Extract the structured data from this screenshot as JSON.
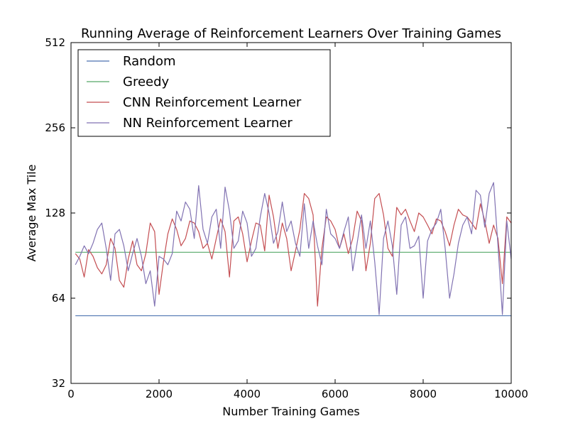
{
  "chart_data": {
    "type": "line",
    "title": "Running Average of Reinforcement Learners Over Training Games",
    "xlabel": "Number Training Games",
    "ylabel": "Average Max Tile",
    "xlim": [
      0,
      10000
    ],
    "ylim": [
      32,
      512
    ],
    "yscale": "log2",
    "xticks": [
      "0",
      "2000",
      "4000",
      "6000",
      "8000",
      "10000"
    ],
    "yticks": [
      "32",
      "64",
      "128",
      "256",
      "512"
    ],
    "legend_position": "top-left",
    "grid": false,
    "series": [
      {
        "name": "Random",
        "color": "#4c72b0",
        "x": [
          100,
          10000
        ],
        "y": [
          55.5,
          55.5
        ]
      },
      {
        "name": "Greedy",
        "color": "#55a868",
        "x": [
          100,
          10000
        ],
        "y": [
          93,
          93
        ]
      },
      {
        "name": "CNN Reinforcement Learner",
        "color": "#c44e52",
        "x": [
          100,
          200,
          300,
          400,
          500,
          600,
          700,
          800,
          900,
          1000,
          1100,
          1200,
          1300,
          1400,
          1500,
          1600,
          1700,
          1800,
          1900,
          2000,
          2100,
          2200,
          2300,
          2400,
          2500,
          2600,
          2700,
          2800,
          2900,
          3000,
          3100,
          3200,
          3300,
          3400,
          3500,
          3600,
          3700,
          3800,
          3900,
          4000,
          4100,
          4200,
          4300,
          4400,
          4500,
          4600,
          4700,
          4800,
          4900,
          5000,
          5100,
          5200,
          5300,
          5400,
          5500,
          5600,
          5700,
          5800,
          5900,
          6000,
          6100,
          6200,
          6300,
          6400,
          6500,
          6600,
          6700,
          6800,
          6900,
          7000,
          7100,
          7200,
          7300,
          7400,
          7500,
          7600,
          7700,
          7800,
          7900,
          8000,
          8100,
          8200,
          8300,
          8400,
          8500,
          8600,
          8700,
          8800,
          8900,
          9000,
          9100,
          9200,
          9300,
          9400,
          9500,
          9600,
          9700,
          9800,
          9900,
          10000
        ],
        "y": [
          92,
          88,
          76,
          95,
          90,
          82,
          78,
          84,
          104,
          96,
          74,
          70,
          88,
          102,
          84,
          80,
          92,
          118,
          110,
          66,
          86,
          108,
          122,
          112,
          98,
          104,
          120,
          118,
          110,
          96,
          100,
          88,
          104,
          122,
          110,
          76,
          120,
          124,
          108,
          86,
          102,
          118,
          116,
          94,
          148,
          124,
          96,
          118,
          104,
          80,
          94,
          112,
          150,
          144,
          126,
          60,
          96,
          124,
          120,
          112,
          96,
          108,
          92,
          104,
          130,
          120,
          80,
          100,
          144,
          150,
          126,
          96,
          90,
          134,
          126,
          132,
          120,
          110,
          128,
          124,
          116,
          108,
          122,
          120,
          110,
          98,
          116,
          132,
          126,
          124,
          118,
          112,
          138,
          120,
          100,
          116,
          104,
          72,
          124,
          118
        ]
      },
      {
        "name": "NN Reinforcement Learner",
        "color": "#8172b2",
        "x": [
          100,
          200,
          300,
          400,
          500,
          600,
          700,
          800,
          900,
          1000,
          1100,
          1200,
          1300,
          1400,
          1500,
          1600,
          1700,
          1800,
          1900,
          2000,
          2100,
          2200,
          2300,
          2400,
          2500,
          2600,
          2700,
          2800,
          2900,
          3000,
          3100,
          3200,
          3300,
          3400,
          3500,
          3600,
          3700,
          3800,
          3900,
          4000,
          4100,
          4200,
          4300,
          4400,
          4500,
          4600,
          4700,
          4800,
          4900,
          5000,
          5100,
          5200,
          5300,
          5400,
          5500,
          5600,
          5700,
          5800,
          5900,
          6000,
          6100,
          6200,
          6300,
          6400,
          6500,
          6600,
          6700,
          6800,
          6900,
          7000,
          7100,
          7200,
          7300,
          7400,
          7500,
          7600,
          7700,
          7800,
          7900,
          8000,
          8100,
          8200,
          8300,
          8400,
          8500,
          8600,
          8700,
          8800,
          8900,
          9000,
          9100,
          9200,
          9300,
          9400,
          9500,
          9600,
          9700,
          9800,
          9900,
          10000
        ],
        "y": [
          84,
          90,
          98,
          92,
          100,
          112,
          118,
          96,
          74,
          108,
          112,
          98,
          80,
          92,
          104,
          90,
          72,
          80,
          60,
          90,
          88,
          84,
          92,
          130,
          120,
          140,
          132,
          104,
          160,
          112,
          100,
          124,
          132,
          96,
          158,
          130,
          96,
          102,
          130,
          118,
          90,
          96,
          124,
          150,
          128,
          100,
          110,
          140,
          110,
          120,
          100,
          90,
          138,
          96,
          120,
          98,
          84,
          132,
          108,
          104,
          96,
          110,
          124,
          80,
          100,
          126,
          96,
          120,
          86,
          56,
          104,
          120,
          98,
          66,
          116,
          124,
          96,
          98,
          106,
          64,
          102,
          112,
          118,
          132,
          96,
          64,
          78,
          100,
          116,
          124,
          108,
          154,
          148,
          114,
          150,
          164,
          98,
          56,
          120,
          88
        ]
      }
    ]
  }
}
